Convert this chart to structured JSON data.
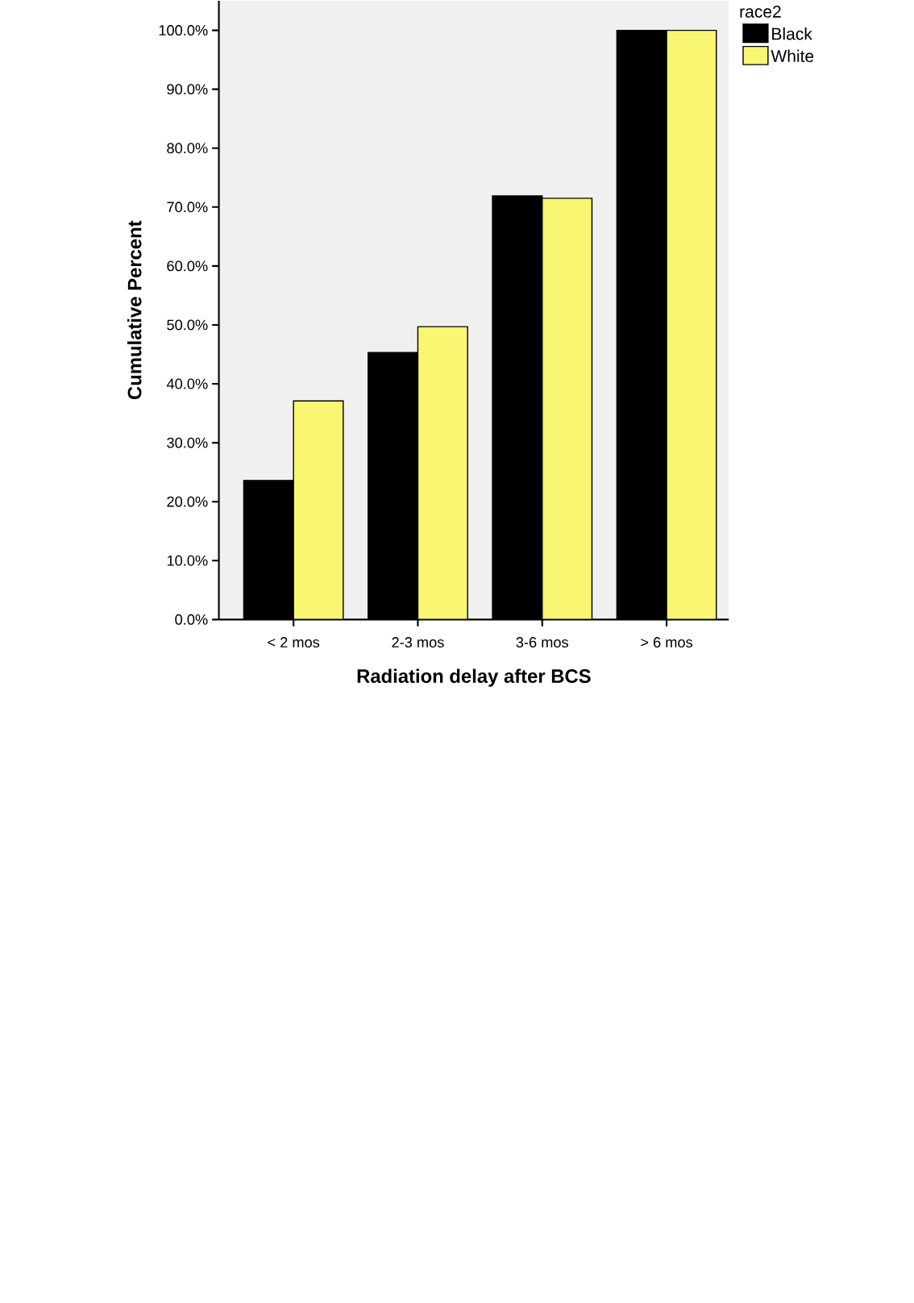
{
  "chart_data": {
    "type": "bar",
    "xlabel": "Radiation delay after BCS",
    "ylabel": "Cumulative Percent",
    "legend_title": "race2",
    "categories": [
      "< 2 mos",
      "2-3 mos",
      "3-6 mos",
      "> 6 mos"
    ],
    "series": [
      {
        "name": "Black",
        "color": "#000000",
        "values": [
          23.6,
          45.3,
          71.9,
          100
        ]
      },
      {
        "name": "White",
        "color": "#f9f671",
        "values": [
          37.1,
          49.7,
          71.5,
          100
        ]
      }
    ],
    "ylim": [
      0,
      105
    ],
    "yticks": [
      {
        "value": 0,
        "label": "0.0%"
      },
      {
        "value": 10,
        "label": "10.0%"
      },
      {
        "value": 20,
        "label": "20.0%"
      },
      {
        "value": 30,
        "label": "30.0%"
      },
      {
        "value": 40,
        "label": "40.0%"
      },
      {
        "value": 50,
        "label": "50.0%"
      },
      {
        "value": 60,
        "label": "60.0%"
      },
      {
        "value": 70,
        "label": "70.0%"
      },
      {
        "value": 80,
        "label": "80.0%"
      },
      {
        "value": 90,
        "label": "90.0%"
      },
      {
        "value": 100,
        "label": "100.0%"
      }
    ],
    "grid": false,
    "legend": "top right"
  }
}
